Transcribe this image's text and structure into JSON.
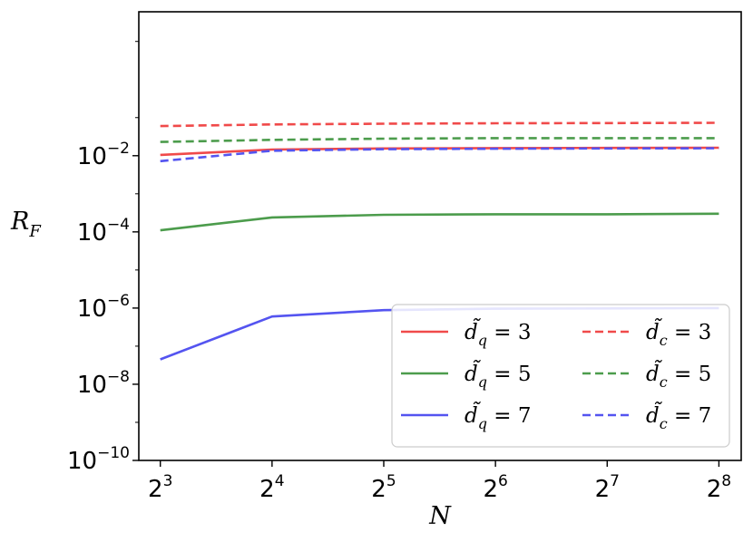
{
  "chart_data": {
    "type": "line",
    "x": [
      8,
      16,
      32,
      64,
      128,
      256
    ],
    "xticks": [
      {
        "base": "2",
        "exp": "3"
      },
      {
        "base": "2",
        "exp": "4"
      },
      {
        "base": "2",
        "exp": "5"
      },
      {
        "base": "2",
        "exp": "6"
      },
      {
        "base": "2",
        "exp": "7"
      },
      {
        "base": "2",
        "exp": "8"
      }
    ],
    "yticks": [
      {
        "base": "10",
        "exp": "−2"
      },
      {
        "base": "10",
        "exp": "−4"
      },
      {
        "base": "10",
        "exp": "−6"
      },
      {
        "base": "10",
        "exp": "−8"
      },
      {
        "base": "10",
        "exp": "−10"
      }
    ],
    "ytick_values": [
      0.01,
      0.0001,
      1e-06,
      1e-08,
      1e-10
    ],
    "xlabel": "N",
    "ylabel": "R",
    "ylabel_sub": "F",
    "xscale": "log2",
    "yscale": "log",
    "xlim": [
      7,
      294
    ],
    "ylim": [
      1e-10,
      60
    ],
    "grid": false,
    "legend": {
      "placement": "lower-right",
      "columns": 2
    },
    "series": [
      {
        "name": "d̃q = 3",
        "base": "d̃",
        "sub": "q",
        "rest": " = 3",
        "color": "#f04a4a",
        "dash": "solid",
        "values": [
          0.0105,
          0.0145,
          0.0155,
          0.0158,
          0.016,
          0.0162
        ]
      },
      {
        "name": "d̃q = 5",
        "base": "d̃",
        "sub": "q",
        "rest": " = 5",
        "color": "#4c9c4c",
        "dash": "solid",
        "values": [
          0.00011,
          0.00024,
          0.00028,
          0.00029,
          0.00029,
          0.0003
        ]
      },
      {
        "name": "d̃q = 7",
        "base": "d̃",
        "sub": "q",
        "rest": " = 7",
        "color": "#5454f0",
        "dash": "solid",
        "values": [
          4.5e-08,
          6e-07,
          8.8e-07,
          9.6e-07,
          9.8e-07,
          1e-06
        ]
      },
      {
        "name": "d̃c = 3",
        "base": "d̃",
        "sub": "c",
        "rest": " = 3",
        "color": "#f04a4a",
        "dash": "dashed",
        "values": [
          0.06,
          0.066,
          0.069,
          0.071,
          0.072,
          0.073
        ]
      },
      {
        "name": "d̃c = 5",
        "base": "d̃",
        "sub": "c",
        "rest": " = 5",
        "color": "#4c9c4c",
        "dash": "dashed",
        "values": [
          0.023,
          0.026,
          0.028,
          0.029,
          0.029,
          0.029
        ]
      },
      {
        "name": "d̃c = 7",
        "base": "d̃",
        "sub": "c",
        "rest": " = 7",
        "color": "#5454f0",
        "dash": "dashed",
        "values": [
          0.0072,
          0.0135,
          0.0148,
          0.0152,
          0.0155,
          0.0157
        ]
      }
    ]
  }
}
